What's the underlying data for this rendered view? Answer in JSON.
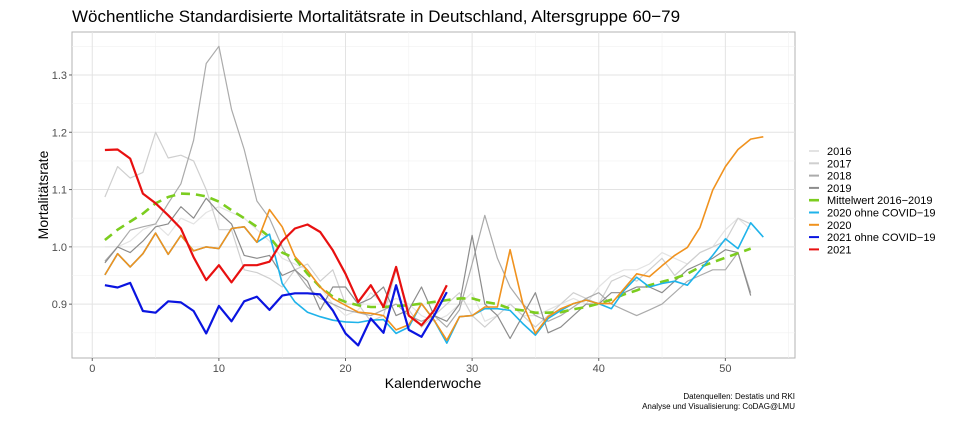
{
  "chart_data": {
    "type": "line",
    "title": "Wöchentliche Standardisierte Mortalitätsrate in Deutschland, Altersgruppe 60−79",
    "xlabel": "Kalenderwoche",
    "ylabel": "Mortalitätsrate",
    "xlim": [
      -1.6,
      55.5
    ],
    "ylim": [
      0.806,
      1.375
    ],
    "xticks": [
      0,
      10,
      20,
      30,
      40,
      50
    ],
    "yticks": [
      0.9,
      1.0,
      1.1,
      1.2,
      1.3
    ],
    "ytick_labels": [
      "0.9",
      "1.0",
      "1.1",
      "1.2",
      "1.3"
    ],
    "grid": true,
    "legend_position": "right",
    "captions": [
      "Datenquellen: Destatis und RKI",
      "Analyse und Visualisierung: CoDAG@LMU"
    ],
    "series": [
      {
        "name": "2016",
        "color": "#e3e3e3",
        "dashed": false,
        "start_week": 1,
        "values": [
          1.0,
          1.0,
          1.01,
          1.03,
          1.04,
          1.02,
          1.05,
          1.04,
          1.06,
          1.07,
          1.06,
          1.05,
          1.03,
          1.01,
          0.98,
          0.97,
          0.96,
          0.93,
          0.9,
          0.88,
          0.89,
          0.92,
          0.9,
          0.91,
          0.9,
          0.88,
          0.87,
          0.88,
          0.9,
          0.92,
          0.87,
          0.88,
          0.9,
          0.88,
          0.88,
          0.89,
          0.9,
          0.91,
          0.9,
          0.93,
          0.95,
          0.96,
          0.96,
          0.97,
          0.99,
          0.98,
          0.97,
          0.99,
          1.0,
          1.03,
          1.05,
          1.03
        ]
      },
      {
        "name": "2017",
        "color": "#cfcfcf",
        "dashed": false,
        "start_week": 1,
        "values": [
          1.087,
          1.14,
          1.12,
          1.13,
          1.2,
          1.155,
          1.16,
          1.15,
          1.1,
          1.03,
          1.03,
          0.96,
          0.955,
          0.945,
          0.93,
          0.96,
          0.97,
          0.94,
          0.96,
          0.9,
          0.9,
          0.87,
          0.88,
          0.96,
          0.89,
          0.86,
          0.88,
          0.9,
          0.92,
          0.88,
          0.86,
          0.88,
          0.9,
          0.88,
          0.86,
          0.88,
          0.9,
          0.92,
          0.91,
          0.9,
          0.94,
          0.95,
          0.94,
          0.96,
          0.98,
          0.95,
          0.97,
          0.99,
          1.0,
          1.01,
          1.05,
          1.04
        ]
      },
      {
        "name": "2018",
        "color": "#ababab",
        "dashed": false,
        "start_week": 1,
        "values": [
          0.975,
          1.0,
          1.029,
          1.035,
          1.04,
          1.076,
          1.11,
          1.186,
          1.32,
          1.35,
          1.24,
          1.17,
          1.08,
          1.05,
          1.0,
          0.96,
          0.93,
          0.91,
          0.9,
          0.89,
          0.885,
          0.88,
          0.89,
          0.9,
          0.88,
          0.87,
          0.88,
          0.86,
          0.89,
          0.97,
          1.055,
          0.98,
          0.93,
          0.9,
          0.88,
          0.87,
          0.88,
          0.895,
          0.91,
          0.92,
          0.9,
          0.89,
          0.88,
          0.89,
          0.9,
          0.92,
          0.94,
          0.95,
          0.96,
          0.96,
          0.99,
          0.92
        ]
      },
      {
        "name": "2019",
        "color": "#8c8c8c",
        "dashed": false,
        "start_week": 1,
        "values": [
          0.972,
          1.0,
          0.99,
          1.01,
          1.035,
          1.04,
          1.07,
          1.05,
          1.085,
          1.06,
          1.04,
          0.985,
          0.98,
          0.985,
          0.95,
          0.96,
          0.94,
          0.89,
          0.93,
          0.93,
          0.9,
          0.91,
          0.93,
          0.88,
          0.89,
          0.93,
          0.88,
          0.87,
          0.9,
          1.02,
          0.9,
          0.88,
          0.84,
          0.88,
          0.92,
          0.85,
          0.86,
          0.88,
          0.9,
          0.9,
          0.92,
          0.92,
          0.93,
          0.93,
          0.92,
          0.94,
          0.96,
          0.97,
          0.98,
          0.995,
          0.99,
          0.915
        ]
      },
      {
        "name": "Mittelwert 2016−2019",
        "color": "#7ccd1f",
        "dashed": true,
        "start_week": 1,
        "values": [
          1.012,
          1.03,
          1.044,
          1.058,
          1.076,
          1.087,
          1.093,
          1.092,
          1.088,
          1.079,
          1.064,
          1.05,
          1.035,
          1.017,
          0.99,
          0.98,
          0.953,
          0.93,
          0.913,
          0.904,
          0.898,
          0.895,
          0.895,
          0.897,
          0.898,
          0.901,
          0.904,
          0.907,
          0.91,
          0.91,
          0.904,
          0.9,
          0.892,
          0.889,
          0.885,
          0.885,
          0.886,
          0.891,
          0.895,
          0.901,
          0.908,
          0.917,
          0.924,
          0.933,
          0.939,
          0.945,
          0.953,
          0.965,
          0.973,
          0.981,
          0.989,
          0.997
        ]
      },
      {
        "name": "2020 ohne COVID−19",
        "color": "#1fb3ea",
        "dashed": false,
        "start_week": 1,
        "values": [
          0.951,
          0.988,
          0.965,
          0.988,
          1.024,
          0.987,
          1.02,
          0.993,
          1.0,
          0.997,
          1.032,
          1.035,
          1.008,
          1.022,
          0.936,
          0.904,
          0.886,
          0.878,
          0.872,
          0.869,
          0.868,
          0.872,
          0.873,
          0.849,
          0.86,
          0.901,
          0.872,
          0.832,
          0.878,
          0.88,
          0.892,
          0.892,
          0.889,
          0.866,
          0.846,
          0.875,
          0.889,
          0.901,
          0.907,
          0.901,
          0.892,
          0.924,
          0.947,
          0.93,
          0.936,
          0.94,
          0.933,
          0.959,
          0.985,
          1.014,
          0.997,
          1.042,
          1.017
        ]
      },
      {
        "name": "2020",
        "color": "#f0921e",
        "dashed": false,
        "start_week": 1,
        "values": [
          0.951,
          0.988,
          0.965,
          0.988,
          1.024,
          0.987,
          1.02,
          0.993,
          1.0,
          0.997,
          1.032,
          1.035,
          1.008,
          1.065,
          1.035,
          0.983,
          0.959,
          0.93,
          0.91,
          0.898,
          0.886,
          0.884,
          0.88,
          0.855,
          0.864,
          0.901,
          0.872,
          0.837,
          0.878,
          0.88,
          0.895,
          0.895,
          0.995,
          0.901,
          0.849,
          0.878,
          0.892,
          0.901,
          0.907,
          0.901,
          0.901,
          0.927,
          0.953,
          0.948,
          0.967,
          0.985,
          0.999,
          1.034,
          1.099,
          1.14,
          1.17,
          1.188,
          1.192
        ]
      },
      {
        "name": "2021 ohne COVID−19",
        "color": "#0a14e0",
        "dashed": false,
        "start_week": 1,
        "values": [
          0.933,
          0.929,
          0.937,
          0.888,
          0.885,
          0.905,
          0.903,
          0.888,
          0.849,
          0.897,
          0.87,
          0.905,
          0.913,
          0.89,
          0.915,
          0.919,
          0.919,
          0.917,
          0.889,
          0.849,
          0.828,
          0.875,
          0.85,
          0.933,
          0.855,
          0.843,
          0.88,
          0.921
        ]
      },
      {
        "name": "2021",
        "color": "#e81010",
        "dashed": false,
        "start_week": 1,
        "values": [
          1.169,
          1.17,
          1.154,
          1.093,
          1.076,
          1.055,
          1.032,
          0.982,
          0.942,
          0.968,
          0.938,
          0.968,
          0.968,
          0.974,
          1.01,
          1.032,
          1.039,
          1.026,
          0.994,
          0.953,
          0.904,
          0.933,
          0.895,
          0.965,
          0.88,
          0.863,
          0.889,
          0.933
        ]
      }
    ]
  }
}
